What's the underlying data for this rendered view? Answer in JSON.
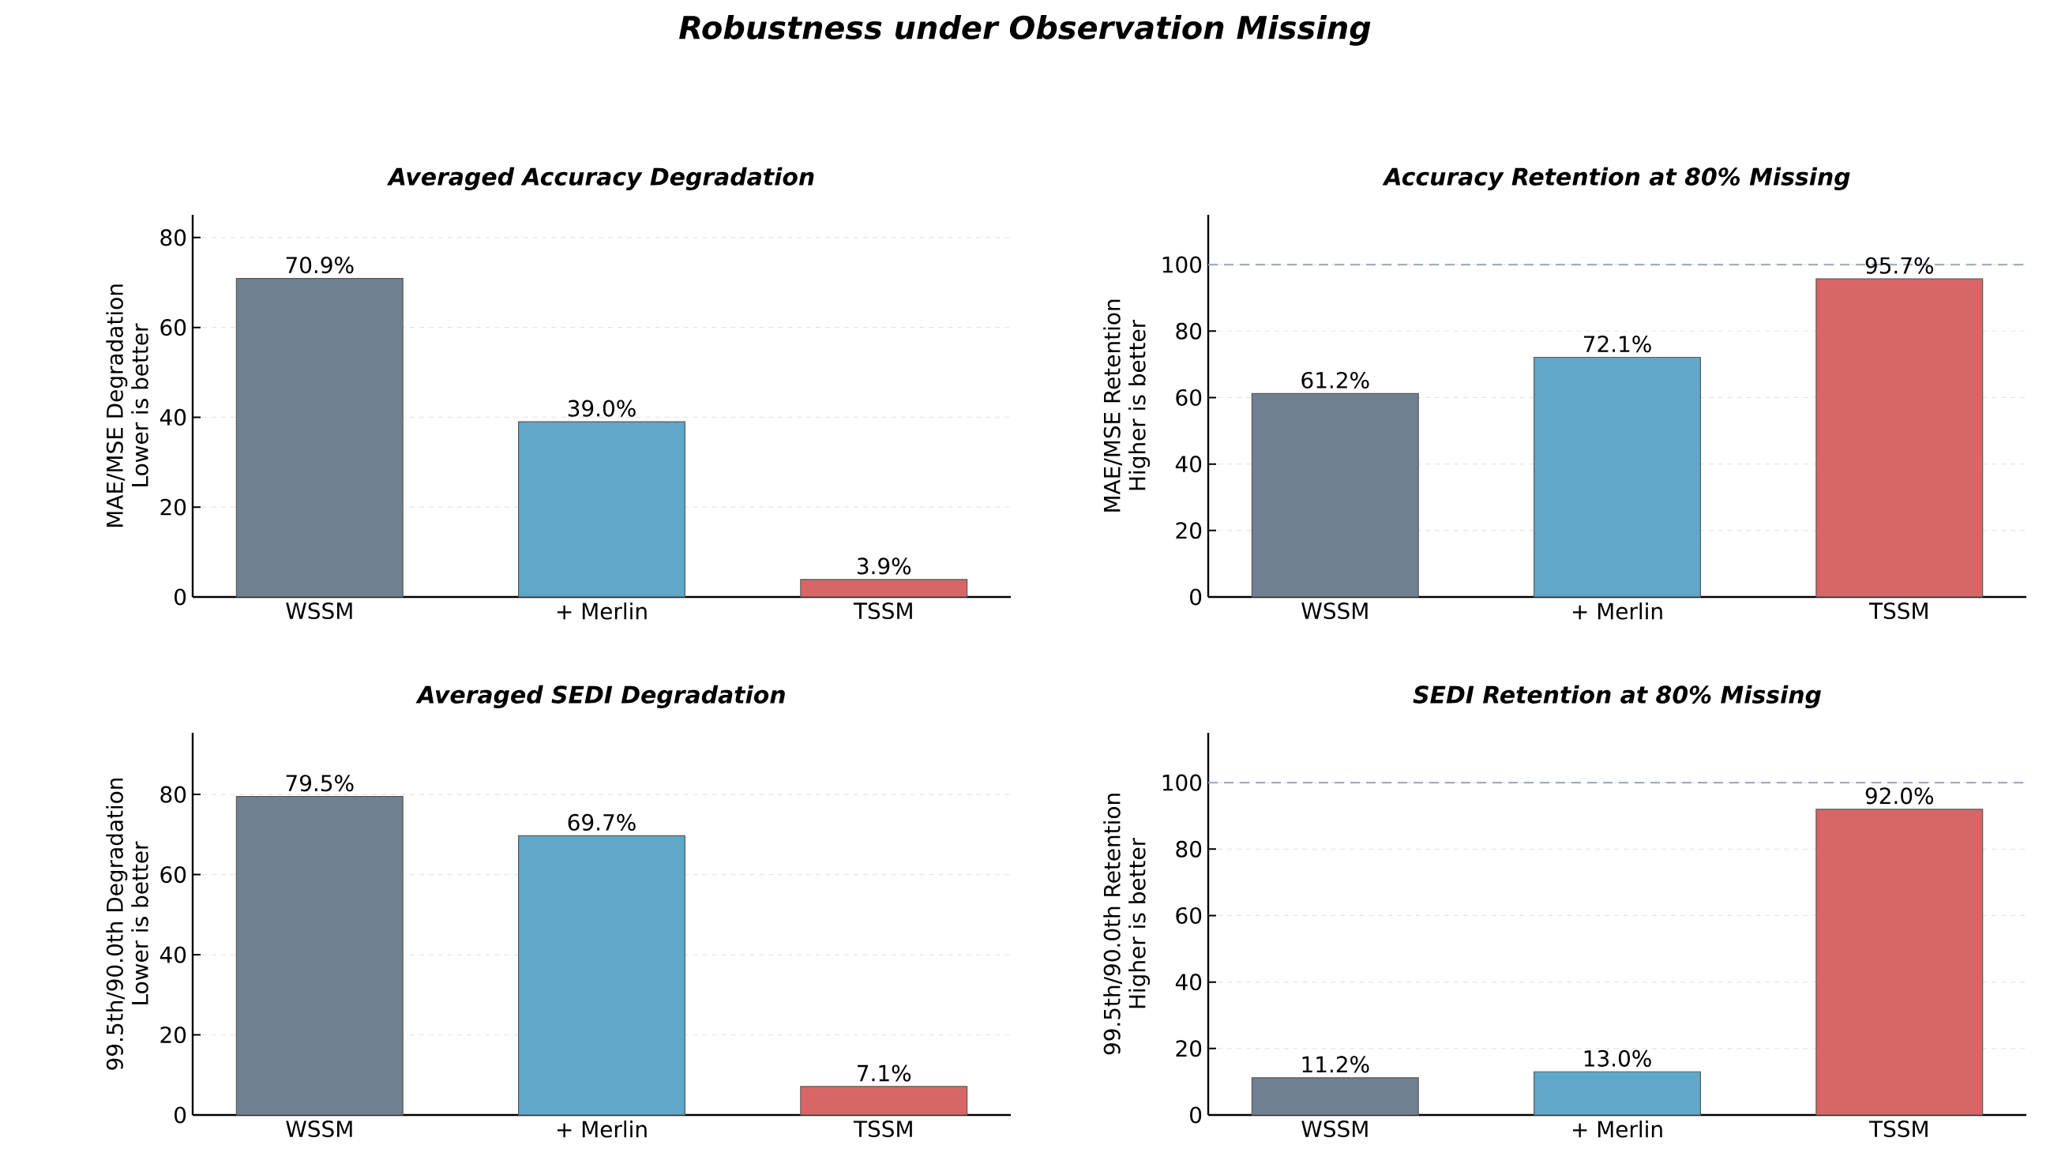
{
  "chart_data": [
    {
      "type": "bar",
      "title": "Averaged Accuracy Degradation",
      "ylabel": "MAE/MSE Degradation",
      "annotations": [
        "Lower is better",
        "Robustness under Observation Missing"
      ],
      "categories": [
        "WSSM",
        "+ Merlin",
        "TSSM"
      ],
      "values": [
        70.9,
        39.0,
        3.9
      ],
      "value_labels": [
        "70.9%",
        "39.0%",
        "3.9%"
      ],
      "colors": [
        "#708090",
        "#5fa8c9",
        "#d96666"
      ],
      "ylim": [
        0,
        85.08
      ],
      "yticks": [
        0,
        20,
        40,
        60,
        80
      ],
      "grid": "y"
    },
    {
      "type": "bar",
      "title": "Accuracy Retention at 80% Missing",
      "ylabel": "MAE/MSE Retention",
      "annotations": [
        "Higher is better"
      ],
      "categories": [
        "WSSM",
        "+ Merlin",
        "TSSM"
      ],
      "values": [
        61.2,
        72.1,
        95.7
      ],
      "value_labels": [
        "61.2%",
        "72.1%",
        "95.7%"
      ],
      "colors": [
        "#708090",
        "#5fa8c9",
        "#d96666"
      ],
      "ylim": [
        0,
        115
      ],
      "yticks": [
        0,
        20,
        40,
        60,
        80,
        100
      ],
      "grid": "y",
      "ref_lines": [
        {
          "axis": "y",
          "value": 100,
          "color": "#a3adc2",
          "line_style": "dashed"
        }
      ]
    },
    {
      "type": "bar",
      "title": "Averaged SEDI Degradation",
      "ylabel": "99.5th/90.0th Degradation",
      "annotations": [
        "Lower is better"
      ],
      "categories": [
        "WSSM",
        "+ Merlin",
        "TSSM"
      ],
      "values": [
        79.5,
        69.7,
        7.1
      ],
      "value_labels": [
        "79.5%",
        "69.7%",
        "7.1%"
      ],
      "colors": [
        "#708090",
        "#5fa8c9",
        "#d96666"
      ],
      "ylim": [
        0,
        95.4
      ],
      "yticks": [
        0,
        20,
        40,
        60,
        80
      ],
      "grid": "y"
    },
    {
      "type": "bar",
      "title": "SEDI Retention at 80% Missing",
      "ylabel": "99.5th/90.0th Retention",
      "annotations": [
        "Higher is better"
      ],
      "categories": [
        "WSSM",
        "+ Merlin",
        "TSSM"
      ],
      "values": [
        11.2,
        13.0,
        92.0
      ],
      "value_labels": [
        "11.2%",
        "13.0%",
        "92.0%"
      ],
      "colors": [
        "#708090",
        "#5fa8c9",
        "#d96666"
      ],
      "ylim": [
        0,
        115
      ],
      "yticks": [
        0,
        20,
        40,
        60,
        80,
        100
      ],
      "grid": "y",
      "ref_lines": [
        {
          "axis": "y",
          "value": 100,
          "color": "#a3adc2",
          "line_style": "dashed"
        }
      ]
    }
  ]
}
